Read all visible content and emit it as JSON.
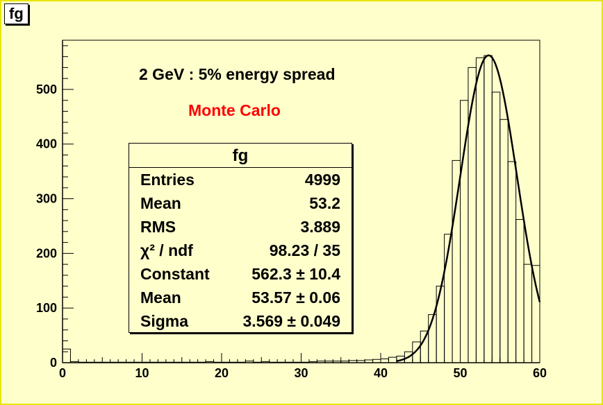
{
  "canvas": {
    "title": "fg"
  },
  "annotations": {
    "main": "2 GeV : 5% energy spread",
    "sub": "Monte Carlo",
    "sub_color": "#ff0000"
  },
  "stats": {
    "title": "fg",
    "rows": [
      {
        "key": "Entries",
        "value": "4999"
      },
      {
        "key": "Mean",
        "value": "53.2"
      },
      {
        "key": "RMS",
        "value": "3.889"
      },
      {
        "key": "χ² / ndf",
        "value": "98.23 / 35"
      },
      {
        "key": "Constant",
        "value": "562.3 ± 10.4"
      },
      {
        "key": "Mean",
        "value": "53.57 ± 0.06"
      },
      {
        "key": "Sigma",
        "value": "3.569 ± 0.049"
      }
    ]
  },
  "chart_data": {
    "type": "bar",
    "xlim": [
      0,
      60
    ],
    "ylim": [
      0,
      590
    ],
    "xticks": [
      0,
      10,
      20,
      30,
      40,
      50,
      60
    ],
    "yticks": [
      0,
      100,
      200,
      300,
      400,
      500
    ],
    "bin_edges_start": 0,
    "bin_width": 1,
    "histogram": [
      25,
      2,
      1,
      1,
      1,
      1,
      1,
      1,
      1,
      1,
      1,
      1,
      1,
      1,
      1,
      1,
      1,
      1,
      2,
      1,
      1,
      1,
      1,
      3,
      1,
      2,
      1,
      1,
      1,
      1,
      1,
      2,
      3,
      3,
      3,
      3,
      4,
      4,
      5,
      6,
      7,
      10,
      12,
      20,
      38,
      58,
      88,
      140,
      235,
      370,
      480,
      540,
      558,
      562,
      495,
      445,
      368,
      262,
      180,
      178
    ],
    "fit": {
      "function": "gaus",
      "constant": 562.3,
      "mean": 53.57,
      "sigma": 3.569,
      "range": [
        42,
        60
      ]
    },
    "hist_color": "#000000",
    "fit_color": "#000000"
  }
}
